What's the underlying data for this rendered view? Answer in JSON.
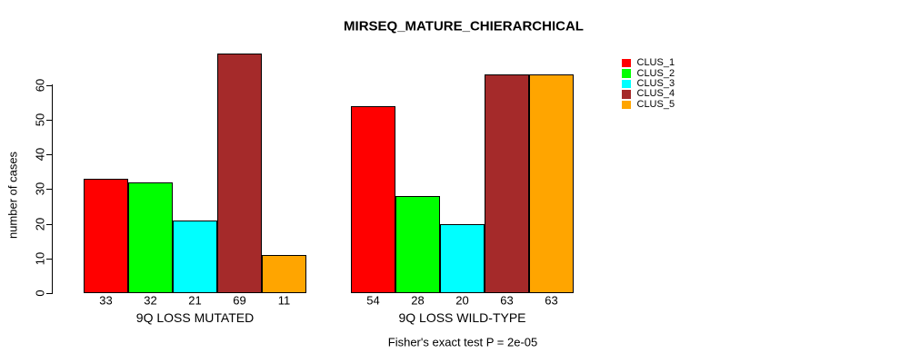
{
  "chart_data": {
    "type": "bar",
    "title": "MIRSEQ_MATURE_CHIERARCHICAL",
    "ylabel": "number of cases",
    "xlabel": "",
    "categories": [
      "9Q LOSS MUTATED",
      "9Q LOSS WILD-TYPE"
    ],
    "series": [
      {
        "name": "CLUS_1",
        "color": "#FF0000",
        "values": [
          33,
          54
        ]
      },
      {
        "name": "CLUS_2",
        "color": "#00FF00",
        "values": [
          32,
          28
        ]
      },
      {
        "name": "CLUS_3",
        "color": "#00FFFF",
        "values": [
          21,
          20
        ]
      },
      {
        "name": "CLUS_4",
        "color": "#A52A2A",
        "values": [
          69,
          63
        ]
      },
      {
        "name": "CLUS_5",
        "color": "#FFA500",
        "values": [
          11,
          63
        ]
      }
    ],
    "yticks": [
      0,
      10,
      20,
      30,
      40,
      50,
      60
    ],
    "ylim": [
      0,
      70
    ],
    "bar_value_labels": true,
    "grid": false,
    "legend_position": "right-outside",
    "annotation": "Fisher's exact test P = 2e-05"
  }
}
